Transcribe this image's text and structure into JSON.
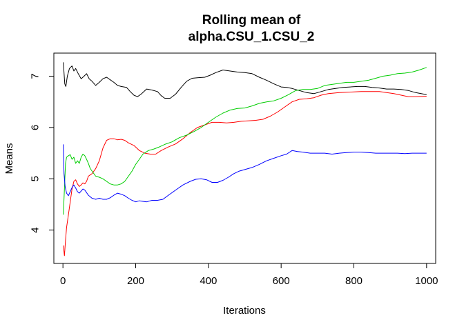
{
  "chart_data": {
    "type": "line",
    "title": [
      "Rolling mean of",
      "alpha.CSU_1.CSU_2"
    ],
    "xlabel": "Iterations",
    "ylabel": "Means",
    "xlim": [
      -25,
      1025
    ],
    "ylim": [
      3.35,
      7.45
    ],
    "x_ticks": [
      0,
      200,
      400,
      600,
      800,
      1000
    ],
    "y_ticks": [
      4,
      5,
      6,
      7
    ],
    "grid": false,
    "legend": "none",
    "series": [
      {
        "color": "#000000",
        "points": [
          [
            1,
            7.27
          ],
          [
            5,
            6.85
          ],
          [
            8,
            6.8
          ],
          [
            12,
            7.0
          ],
          [
            18,
            7.15
          ],
          [
            25,
            7.2
          ],
          [
            30,
            7.1
          ],
          [
            35,
            7.15
          ],
          [
            42,
            7.05
          ],
          [
            50,
            6.95
          ],
          [
            58,
            7.0
          ],
          [
            65,
            7.05
          ],
          [
            72,
            6.95
          ],
          [
            80,
            6.9
          ],
          [
            90,
            6.82
          ],
          [
            100,
            6.88
          ],
          [
            110,
            6.95
          ],
          [
            120,
            6.98
          ],
          [
            130,
            6.93
          ],
          [
            140,
            6.88
          ],
          [
            150,
            6.82
          ],
          [
            160,
            6.8
          ],
          [
            175,
            6.78
          ],
          [
            185,
            6.7
          ],
          [
            195,
            6.63
          ],
          [
            205,
            6.6
          ],
          [
            215,
            6.65
          ],
          [
            230,
            6.75
          ],
          [
            245,
            6.73
          ],
          [
            260,
            6.7
          ],
          [
            270,
            6.62
          ],
          [
            280,
            6.57
          ],
          [
            295,
            6.57
          ],
          [
            310,
            6.65
          ],
          [
            325,
            6.78
          ],
          [
            340,
            6.9
          ],
          [
            355,
            6.96
          ],
          [
            370,
            6.97
          ],
          [
            390,
            6.98
          ],
          [
            405,
            7.02
          ],
          [
            420,
            7.07
          ],
          [
            440,
            7.12
          ],
          [
            460,
            7.1
          ],
          [
            480,
            7.08
          ],
          [
            500,
            7.07
          ],
          [
            520,
            7.05
          ],
          [
            540,
            6.98
          ],
          [
            560,
            6.92
          ],
          [
            580,
            6.85
          ],
          [
            600,
            6.79
          ],
          [
            615,
            6.78
          ],
          [
            630,
            6.76
          ],
          [
            650,
            6.72
          ],
          [
            670,
            6.68
          ],
          [
            690,
            6.66
          ],
          [
            710,
            6.7
          ],
          [
            730,
            6.74
          ],
          [
            750,
            6.76
          ],
          [
            770,
            6.78
          ],
          [
            790,
            6.79
          ],
          [
            810,
            6.8
          ],
          [
            830,
            6.8
          ],
          [
            850,
            6.78
          ],
          [
            870,
            6.77
          ],
          [
            890,
            6.75
          ],
          [
            910,
            6.75
          ],
          [
            930,
            6.74
          ],
          [
            950,
            6.72
          ],
          [
            970,
            6.68
          ],
          [
            985,
            6.66
          ],
          [
            1000,
            6.64
          ]
        ]
      },
      {
        "color": "#ff0000",
        "points": [
          [
            1,
            3.7
          ],
          [
            4,
            3.5
          ],
          [
            7,
            3.8
          ],
          [
            10,
            4.05
          ],
          [
            15,
            4.3
          ],
          [
            20,
            4.55
          ],
          [
            25,
            4.8
          ],
          [
            30,
            4.95
          ],
          [
            35,
            4.98
          ],
          [
            40,
            4.9
          ],
          [
            45,
            4.85
          ],
          [
            50,
            4.88
          ],
          [
            55,
            4.92
          ],
          [
            60,
            4.9
          ],
          [
            65,
            4.95
          ],
          [
            70,
            5.05
          ],
          [
            80,
            5.1
          ],
          [
            90,
            5.2
          ],
          [
            100,
            5.35
          ],
          [
            110,
            5.6
          ],
          [
            120,
            5.75
          ],
          [
            130,
            5.78
          ],
          [
            140,
            5.78
          ],
          [
            150,
            5.76
          ],
          [
            160,
            5.77
          ],
          [
            170,
            5.75
          ],
          [
            180,
            5.7
          ],
          [
            195,
            5.65
          ],
          [
            210,
            5.55
          ],
          [
            225,
            5.5
          ],
          [
            240,
            5.48
          ],
          [
            255,
            5.48
          ],
          [
            270,
            5.55
          ],
          [
            290,
            5.62
          ],
          [
            310,
            5.68
          ],
          [
            330,
            5.78
          ],
          [
            350,
            5.9
          ],
          [
            370,
            6.0
          ],
          [
            390,
            6.05
          ],
          [
            410,
            6.1
          ],
          [
            430,
            6.1
          ],
          [
            450,
            6.09
          ],
          [
            470,
            6.1
          ],
          [
            490,
            6.12
          ],
          [
            510,
            6.13
          ],
          [
            530,
            6.14
          ],
          [
            550,
            6.16
          ],
          [
            570,
            6.22
          ],
          [
            590,
            6.3
          ],
          [
            610,
            6.4
          ],
          [
            630,
            6.5
          ],
          [
            650,
            6.55
          ],
          [
            670,
            6.56
          ],
          [
            690,
            6.58
          ],
          [
            710,
            6.63
          ],
          [
            730,
            6.66
          ],
          [
            760,
            6.68
          ],
          [
            790,
            6.69
          ],
          [
            820,
            6.7
          ],
          [
            850,
            6.7
          ],
          [
            870,
            6.7
          ],
          [
            890,
            6.68
          ],
          [
            910,
            6.66
          ],
          [
            930,
            6.63
          ],
          [
            950,
            6.6
          ],
          [
            970,
            6.6
          ],
          [
            1000,
            6.61
          ]
        ]
      },
      {
        "color": "#00cd00",
        "points": [
          [
            1,
            4.3
          ],
          [
            4,
            4.8
          ],
          [
            7,
            5.3
          ],
          [
            10,
            5.42
          ],
          [
            15,
            5.45
          ],
          [
            20,
            5.47
          ],
          [
            25,
            5.38
          ],
          [
            30,
            5.42
          ],
          [
            35,
            5.3
          ],
          [
            40,
            5.35
          ],
          [
            45,
            5.3
          ],
          [
            50,
            5.42
          ],
          [
            55,
            5.48
          ],
          [
            60,
            5.45
          ],
          [
            65,
            5.38
          ],
          [
            70,
            5.3
          ],
          [
            75,
            5.2
          ],
          [
            80,
            5.15
          ],
          [
            90,
            5.05
          ],
          [
            100,
            5.03
          ],
          [
            110,
            5.0
          ],
          [
            120,
            4.95
          ],
          [
            130,
            4.9
          ],
          [
            140,
            4.88
          ],
          [
            150,
            4.88
          ],
          [
            160,
            4.9
          ],
          [
            170,
            4.95
          ],
          [
            180,
            5.05
          ],
          [
            190,
            5.15
          ],
          [
            200,
            5.28
          ],
          [
            210,
            5.38
          ],
          [
            220,
            5.48
          ],
          [
            235,
            5.55
          ],
          [
            250,
            5.58
          ],
          [
            265,
            5.62
          ],
          [
            280,
            5.67
          ],
          [
            300,
            5.72
          ],
          [
            320,
            5.8
          ],
          [
            340,
            5.85
          ],
          [
            360,
            5.92
          ],
          [
            380,
            6.0
          ],
          [
            400,
            6.1
          ],
          [
            420,
            6.2
          ],
          [
            440,
            6.28
          ],
          [
            460,
            6.34
          ],
          [
            480,
            6.37
          ],
          [
            500,
            6.38
          ],
          [
            520,
            6.42
          ],
          [
            540,
            6.47
          ],
          [
            560,
            6.5
          ],
          [
            580,
            6.52
          ],
          [
            600,
            6.57
          ],
          [
            620,
            6.64
          ],
          [
            640,
            6.72
          ],
          [
            660,
            6.74
          ],
          [
            680,
            6.74
          ],
          [
            700,
            6.76
          ],
          [
            720,
            6.82
          ],
          [
            740,
            6.84
          ],
          [
            760,
            6.86
          ],
          [
            780,
            6.88
          ],
          [
            800,
            6.88
          ],
          [
            820,
            6.9
          ],
          [
            840,
            6.92
          ],
          [
            860,
            6.96
          ],
          [
            880,
            7.0
          ],
          [
            900,
            7.02
          ],
          [
            920,
            7.05
          ],
          [
            940,
            7.06
          ],
          [
            960,
            7.08
          ],
          [
            980,
            7.12
          ],
          [
            1000,
            7.17
          ]
        ]
      },
      {
        "color": "#0000ff",
        "points": [
          [
            1,
            5.67
          ],
          [
            3,
            5.1
          ],
          [
            6,
            4.85
          ],
          [
            10,
            4.72
          ],
          [
            15,
            4.67
          ],
          [
            20,
            4.75
          ],
          [
            25,
            4.83
          ],
          [
            30,
            4.88
          ],
          [
            35,
            4.82
          ],
          [
            40,
            4.75
          ],
          [
            45,
            4.72
          ],
          [
            50,
            4.76
          ],
          [
            55,
            4.8
          ],
          [
            60,
            4.78
          ],
          [
            65,
            4.73
          ],
          [
            70,
            4.68
          ],
          [
            80,
            4.62
          ],
          [
            90,
            4.6
          ],
          [
            100,
            4.62
          ],
          [
            110,
            4.6
          ],
          [
            120,
            4.6
          ],
          [
            130,
            4.63
          ],
          [
            140,
            4.68
          ],
          [
            150,
            4.72
          ],
          [
            160,
            4.7
          ],
          [
            170,
            4.67
          ],
          [
            180,
            4.62
          ],
          [
            190,
            4.58
          ],
          [
            200,
            4.55
          ],
          [
            210,
            4.57
          ],
          [
            220,
            4.56
          ],
          [
            230,
            4.55
          ],
          [
            245,
            4.58
          ],
          [
            260,
            4.58
          ],
          [
            275,
            4.6
          ],
          [
            290,
            4.68
          ],
          [
            310,
            4.78
          ],
          [
            330,
            4.88
          ],
          [
            350,
            4.95
          ],
          [
            365,
            4.99
          ],
          [
            380,
            5.0
          ],
          [
            395,
            4.98
          ],
          [
            410,
            4.93
          ],
          [
            425,
            4.93
          ],
          [
            440,
            4.97
          ],
          [
            455,
            5.03
          ],
          [
            470,
            5.1
          ],
          [
            485,
            5.15
          ],
          [
            500,
            5.18
          ],
          [
            520,
            5.22
          ],
          [
            540,
            5.28
          ],
          [
            560,
            5.35
          ],
          [
            580,
            5.4
          ],
          [
            600,
            5.45
          ],
          [
            615,
            5.48
          ],
          [
            630,
            5.55
          ],
          [
            645,
            5.53
          ],
          [
            660,
            5.52
          ],
          [
            680,
            5.5
          ],
          [
            700,
            5.5
          ],
          [
            720,
            5.5
          ],
          [
            740,
            5.48
          ],
          [
            760,
            5.5
          ],
          [
            780,
            5.51
          ],
          [
            800,
            5.52
          ],
          [
            820,
            5.52
          ],
          [
            840,
            5.51
          ],
          [
            860,
            5.5
          ],
          [
            880,
            5.5
          ],
          [
            900,
            5.5
          ],
          [
            920,
            5.5
          ],
          [
            940,
            5.49
          ],
          [
            960,
            5.5
          ],
          [
            980,
            5.5
          ],
          [
            1000,
            5.5
          ]
        ]
      }
    ]
  }
}
